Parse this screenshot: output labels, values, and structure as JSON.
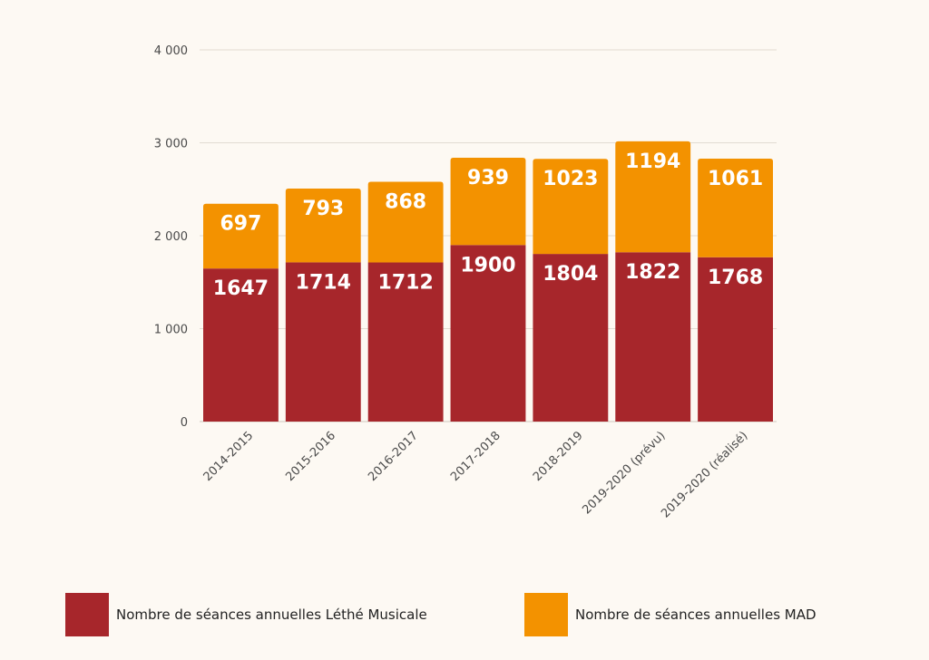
{
  "colors": {
    "background": "#fdf9f3",
    "lethe": "#a7262b",
    "mad": "#f39200",
    "grid": "#e2dcd2",
    "axis": "#cfc8bd"
  },
  "chart_data": {
    "type": "bar",
    "stacked": true,
    "title": "",
    "xlabel": "",
    "ylabel": "",
    "ylim": [
      0,
      4000
    ],
    "yticks": [
      0,
      1000,
      2000,
      3000,
      4000
    ],
    "ytick_labels": [
      "0",
      "1 000",
      "2 000",
      "3 000",
      "4 000"
    ],
    "grid": true,
    "legend_position": "bottom",
    "categories": [
      "2014-2015",
      "2015-2016",
      "2016-2017",
      "2017-2018",
      "2018-2019",
      "2019-2020 (prévu)",
      "2019-2020 (réalisé)"
    ],
    "series": [
      {
        "name": "Nombre de séances annuelles Léthé Musicale",
        "color_key": "lethe",
        "values": [
          1647,
          1714,
          1712,
          1900,
          1804,
          1822,
          1768
        ]
      },
      {
        "name": "Nombre de séances annuelles MAD",
        "color_key": "mad",
        "values": [
          697,
          793,
          868,
          939,
          1023,
          1194,
          1061
        ]
      }
    ]
  }
}
